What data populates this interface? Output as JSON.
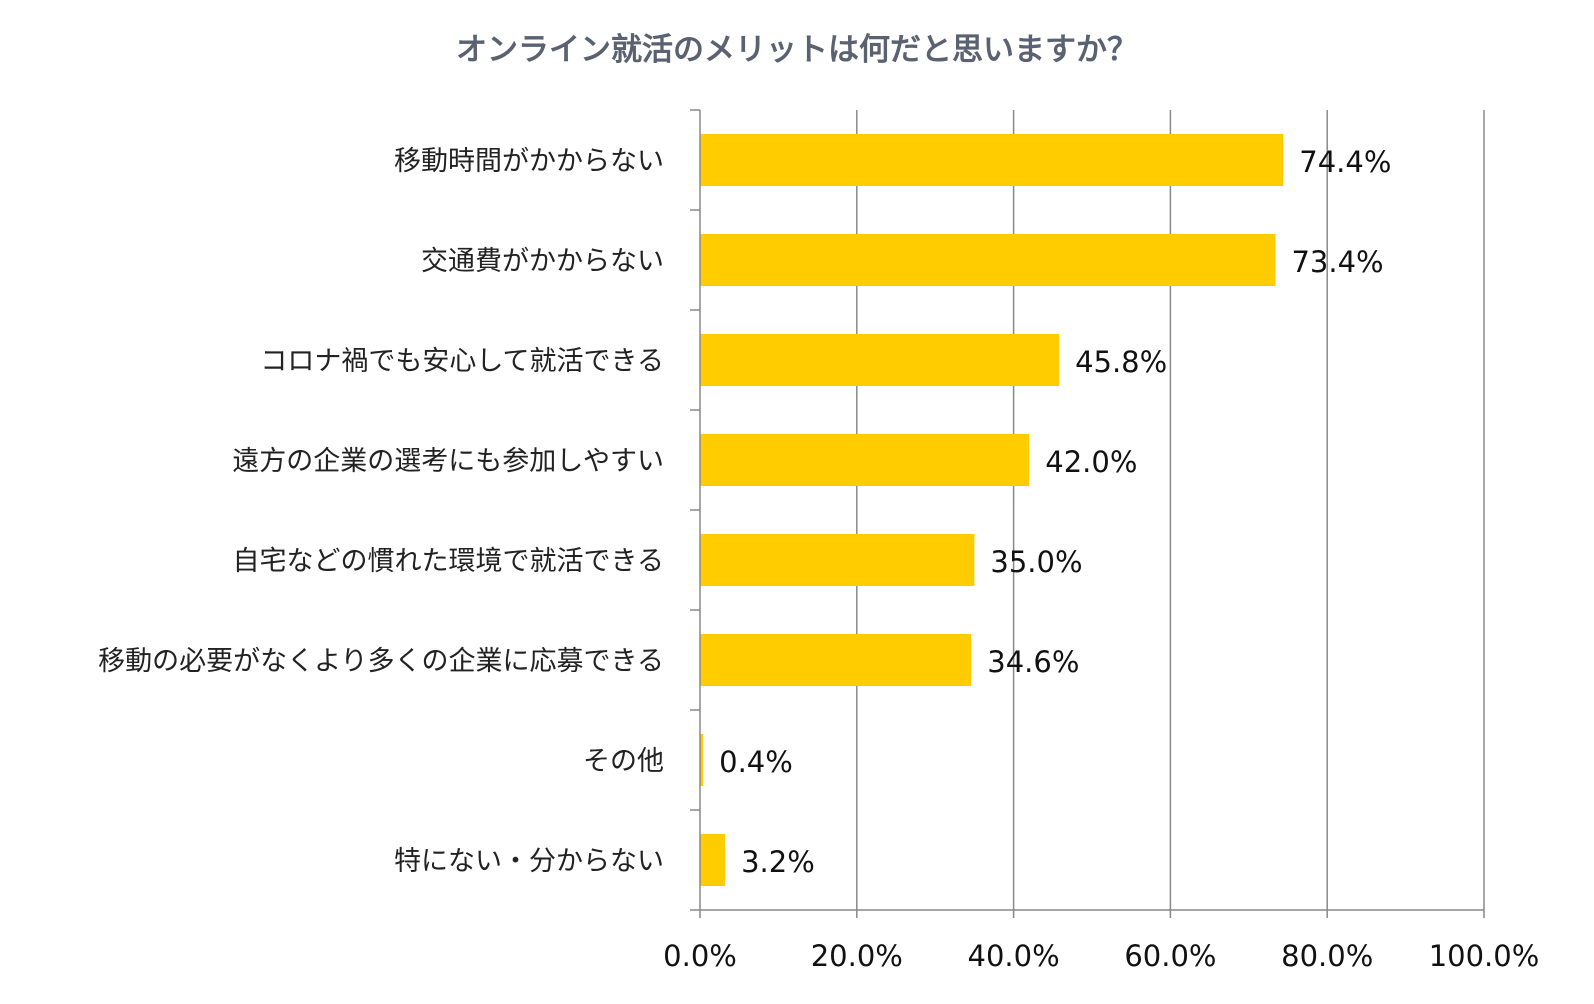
{
  "chart_data": {
    "type": "bar",
    "orientation": "horizontal",
    "title": "オンライン就活のメリットは何だと思いますか？",
    "categories": [
      "移動時間がかからない",
      "交通費がかからない",
      "コロナ禍でも安心して就活できる",
      "遠方の企業の選考にも参加しやすい",
      "自宅などの慣れた環境で就活できる",
      "移動の必要がなくより多くの企業に応募できる",
      "その他",
      "特にない・分からない"
    ],
    "values": [
      74.4,
      73.4,
      45.8,
      42.0,
      35.0,
      34.6,
      0.4,
      3.2
    ],
    "value_labels": [
      "74.4%",
      "73.4%",
      "45.8%",
      "42.0%",
      "35.0%",
      "34.6%",
      "0.4%",
      "3.2%"
    ],
    "xlim": [
      0,
      100
    ],
    "x_ticks": [
      0,
      20,
      40,
      60,
      80,
      100
    ],
    "x_tick_labels": [
      "0.0%",
      "20.0%",
      "40.0%",
      "60.0%",
      "80.0%",
      "100.0%"
    ],
    "xlabel": "",
    "ylabel": "",
    "grid": "vertical",
    "legend": "none",
    "bar_color": "#ffcc00",
    "grid_color": "#888888",
    "title_color": "#5a6170"
  }
}
